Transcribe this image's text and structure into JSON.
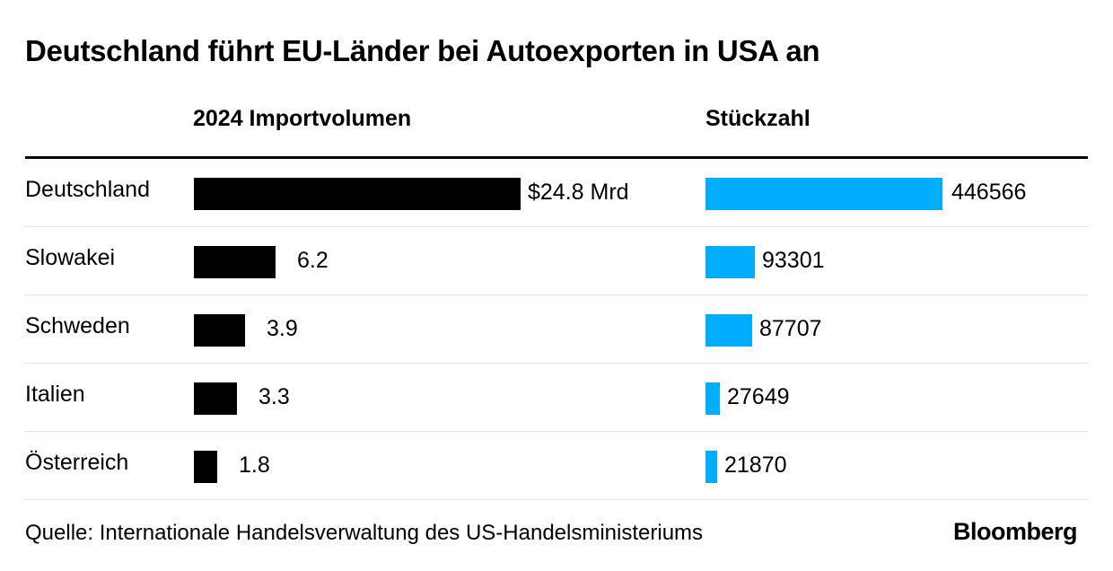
{
  "chart_data": {
    "type": "bar",
    "title": "Deutschland führt EU-Länder bei Autoexporten in USA an",
    "categories": [
      "Deutschland",
      "Slowakei",
      "Schweden",
      "Italien",
      "Österreich"
    ],
    "series": [
      {
        "name": "2024 Importvolumen",
        "values": [
          24.8,
          6.2,
          3.9,
          3.3,
          1.8
        ],
        "labels": [
          "$24.8 Mrd",
          "6.2",
          "3.9",
          "3.3",
          "1.8"
        ],
        "color": "#000000"
      },
      {
        "name": "Stückzahl",
        "values": [
          446566,
          93301,
          87707,
          27649,
          21870
        ],
        "labels": [
          "446566",
          "93301",
          "87707",
          "27649",
          "21870"
        ],
        "color": "#00adff"
      }
    ],
    "source": "Quelle: Internationale Handelsverwaltung des US-Handelsministeriums",
    "brand": "Bloomberg"
  }
}
